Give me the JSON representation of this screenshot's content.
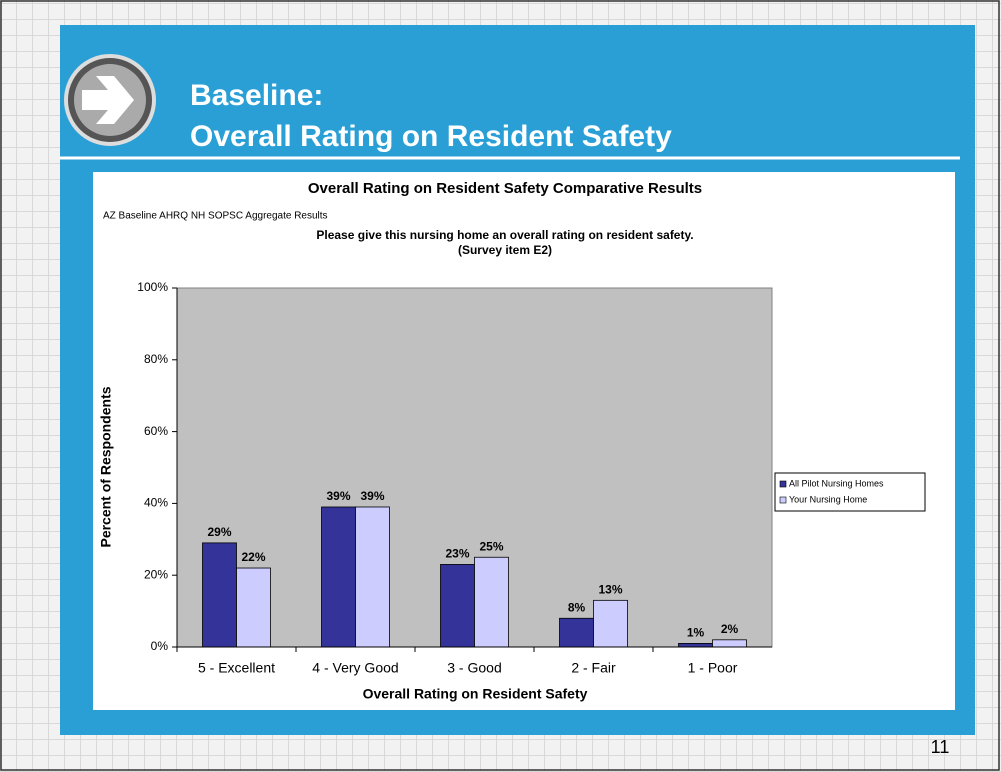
{
  "slide": {
    "title_lines": [
      "Baseline:",
      "Overall Rating on Resident Safety"
    ],
    "page_number": "11"
  },
  "chart_data": {
    "type": "bar",
    "title": "Overall Rating on Resident Safety Comparative Results",
    "subtitle": "AZ Baseline AHRQ NH SOPSC Aggregate Results",
    "question": [
      "Please give this nursing home an overall rating on resident safety.",
      "(Survey item E2)"
    ],
    "x_label": "Overall Rating on Resident Safety",
    "y_label": "Percent of Respondents",
    "categories": [
      "5 - Excellent",
      "4 - Very Good",
      "3 - Good",
      "2 - Fair",
      "1 - Poor"
    ],
    "series": [
      {
        "name": "All Pilot Nursing Homes",
        "color": "#333399",
        "values": [
          29,
          39,
          23,
          8,
          1
        ],
        "value_labels": [
          "29%",
          "39%",
          "23%",
          "8%",
          "1%"
        ]
      },
      {
        "name": "Your Nursing Home",
        "color": "#ccccff",
        "values": [
          22,
          39,
          25,
          13,
          2
        ],
        "value_labels": [
          "22%",
          "39%",
          "25%",
          "13%",
          "2%"
        ]
      }
    ],
    "ylim": [
      0,
      100
    ],
    "yticks": [
      {
        "value": 0,
        "label": "0%"
      },
      {
        "value": 20,
        "label": "20%"
      },
      {
        "value": 40,
        "label": "40%"
      },
      {
        "value": 60,
        "label": "60%"
      },
      {
        "value": 80,
        "label": "80%"
      },
      {
        "value": 100,
        "label": "100%"
      }
    ],
    "plot_background": "#c0c0c0",
    "legend": "right"
  }
}
